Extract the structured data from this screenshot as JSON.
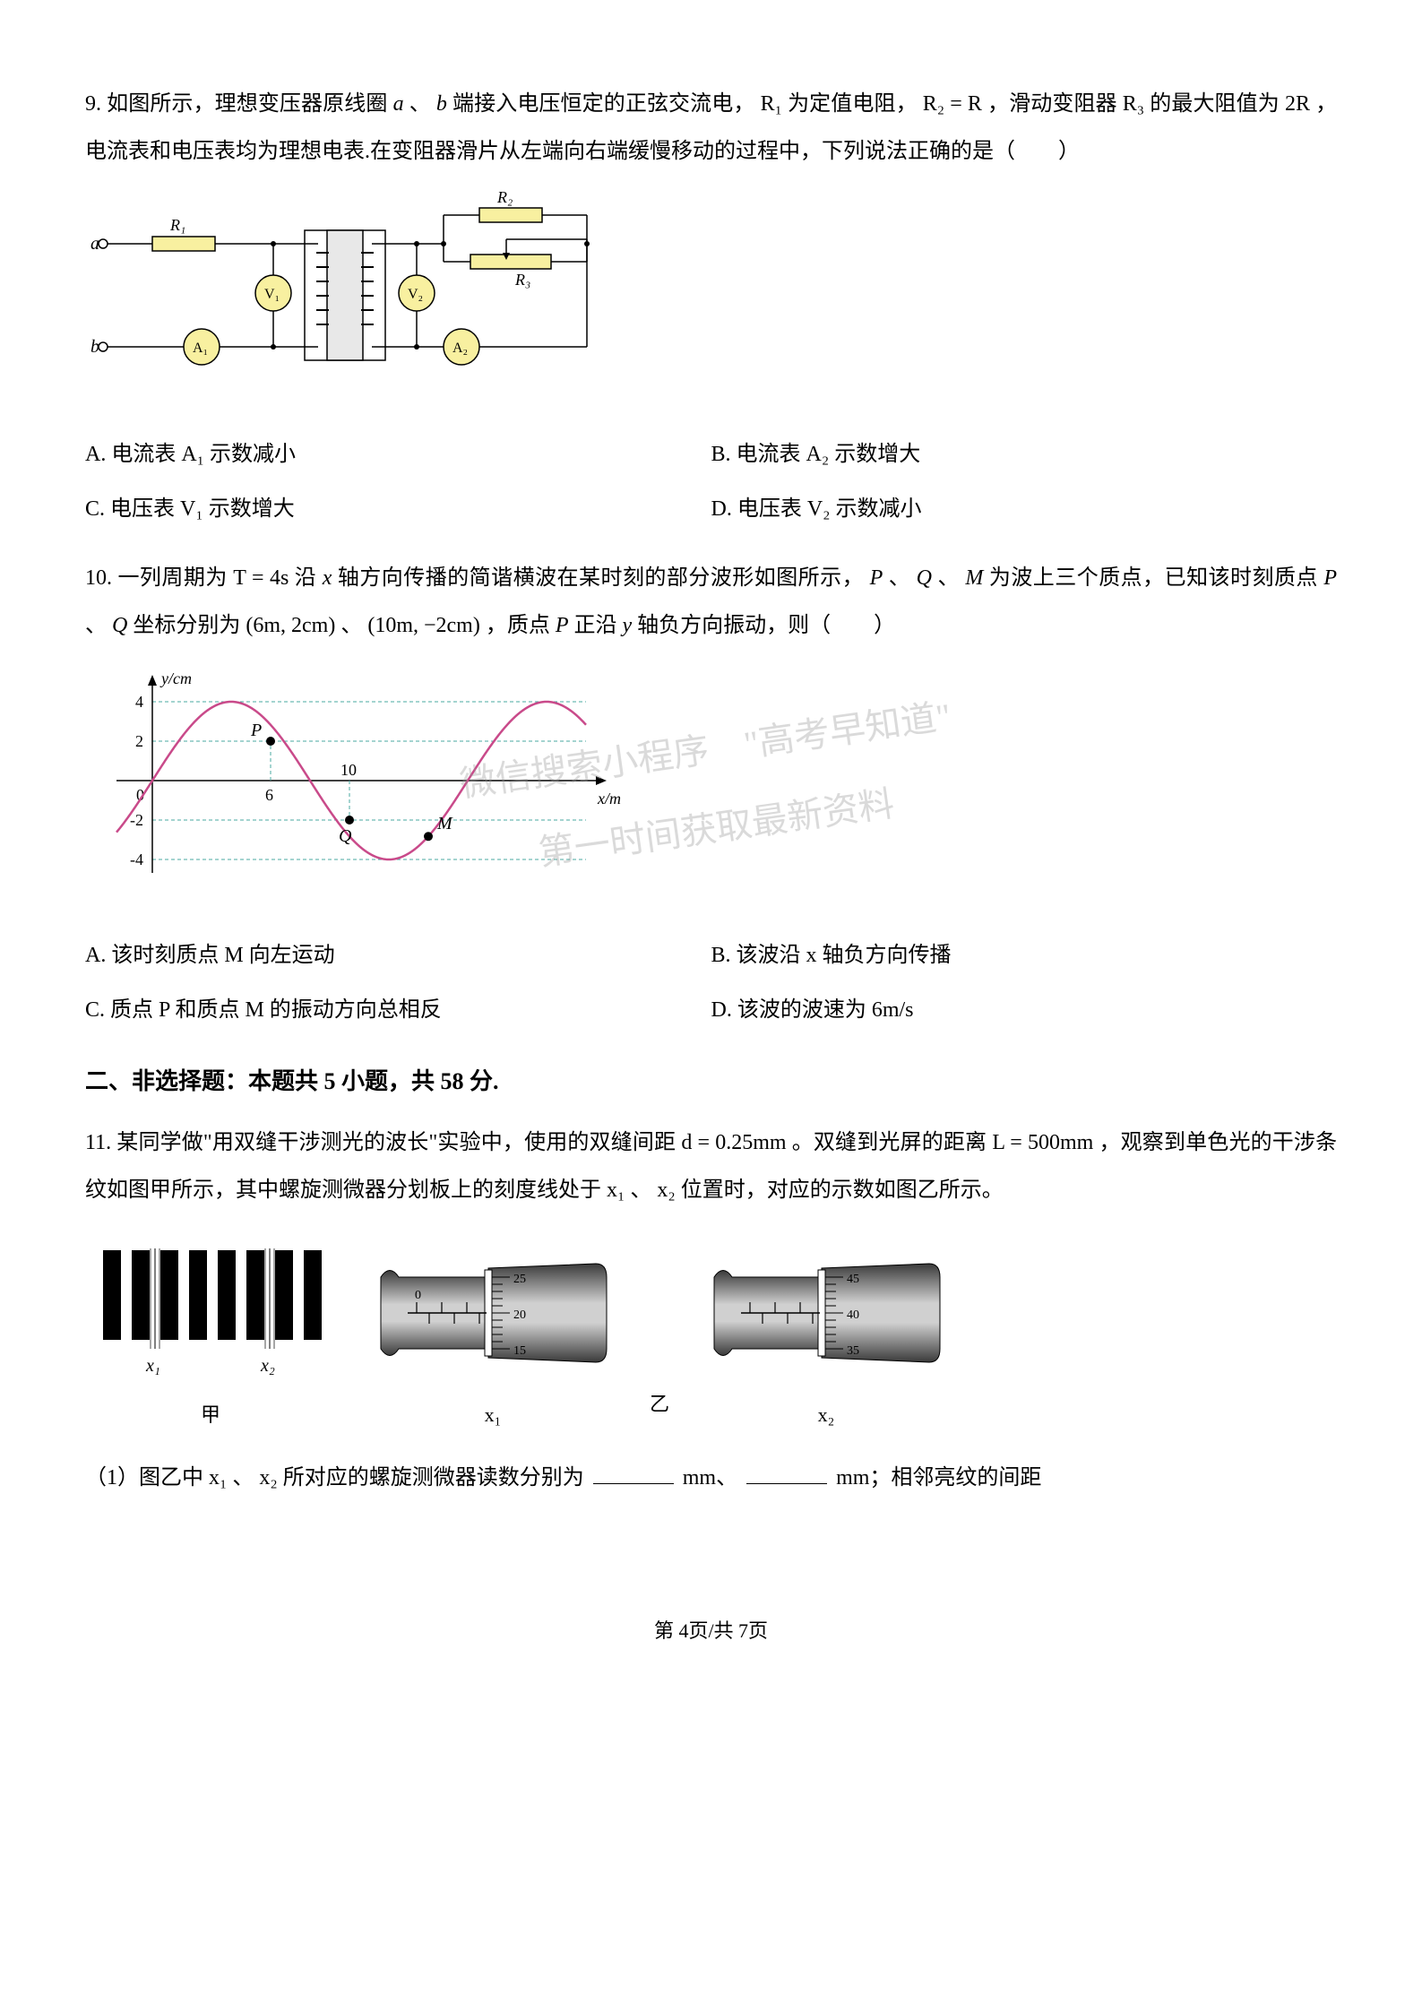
{
  "q9": {
    "number": "9.",
    "text1": "如图所示，理想变压器原线圈",
    "text2": "、",
    "text3": "端接入电压恒定的正弦交流电，",
    "text4": "为定值电阻，",
    "text5": "，滑动变阻器",
    "text6": "的最大阻值为",
    "text7": "，电流表和电压表均为理想电表.在变阻器滑片从左端向右端缓慢移动的过程中，下列说法正确的是（　　）",
    "sym_a": "a",
    "sym_b": "b",
    "R1": "R₁",
    "R2_eq": "R₂ = R",
    "R3": "R₃",
    "two_R": "2R",
    "optA": "A. 电流表 A₁ 示数减小",
    "optB": "B. 电流表 A₂ 示数增大",
    "optC": "C. 电压表 V₁ 示数增大",
    "optD": "D. 电压表 V₂ 示数减小",
    "circuit": {
      "terminal_a": "a",
      "terminal_b": "b",
      "R1_label": "R₁",
      "R2_label": "R₂",
      "R3_label": "R₃",
      "V1_label": "V₁",
      "V2_label": "V₂",
      "A1_label": "A₁",
      "A2_label": "A₂",
      "wire_color": "#000000",
      "resistor_fill": "#f8f0a0",
      "meter_fill": "#f8f0a0",
      "core_fill": "#e8e8e8"
    }
  },
  "q10": {
    "number": "10.",
    "text1": "一列周期为",
    "text2": "沿",
    "text3": "轴方向传播的简谐横波在某时刻的部分波形如图所示，",
    "text4": "、",
    "text5": "、",
    "text6": "为波上三个质点，已知该时刻质点",
    "text7": "、",
    "text8": "坐标分别为",
    "text9": "、",
    "text10": "，质点",
    "text11": "正沿",
    "text12": "轴负方向振动，则（　　）",
    "T_eq": "T = 4s",
    "x": "x",
    "P": "P",
    "Q": "Q",
    "M": "M",
    "coord1": "(6m, 2cm)",
    "coord2": "(10m, −2cm)",
    "y": "y",
    "optA": "A. 该时刻质点 M 向左运动",
    "optB": "B. 该波沿 x 轴负方向传播",
    "optC": "C. 质点 P 和质点 M 的振动方向总相反",
    "optD": "D. 该波的波速为 6m/s",
    "chart": {
      "type": "line",
      "xlabel": "x/m",
      "ylabel": "y/cm",
      "ylim": [
        -4,
        4
      ],
      "yticks": [
        -4,
        -2,
        0,
        2,
        4
      ],
      "xticks_visible": [
        0,
        6,
        10
      ],
      "curve_color": "#c94a8a",
      "grid_color": "#4aa8a0",
      "grid_dash": "4,3",
      "axis_color": "#000000",
      "point_fill": "#000000",
      "P_label": "P",
      "Q_label": "Q",
      "M_label": "M",
      "amplitude": 4,
      "wavelength": 16,
      "phase_offset": 4,
      "P_x": 6,
      "P_y": 2,
      "Q_x": 10,
      "Q_y": -2,
      "M_x": 14
    },
    "watermark_line1": "微信搜索小程序　\"高考早知道\"",
    "watermark_line2": "第一时间获取最新资料"
  },
  "section2": {
    "title": "二、非选择题：本题共 5 小题，共 58 分."
  },
  "q11": {
    "number": "11.",
    "text1": "某同学做\"用双缝干涉测光的波长\"实验中，使用的双缝间距",
    "text2": "。双缝到光屏的距离",
    "text3": "，观察到单色光的干涉条纹如图甲所示，其中螺旋测微器分划板上的刻度线处于",
    "text4": "、",
    "text5": "位置时，对应的示数如图乙所示。",
    "d_eq": "d = 0.25mm",
    "L_eq": "L = 500mm",
    "x1": "x₁",
    "x2": "x₂",
    "sub1_label": "（1）图乙中",
    "sub1_mid1": "、",
    "sub1_mid2": "所对应的螺旋测微器读数分别为",
    "sub1_unit1": "mm、",
    "sub1_unit2": "mm；相邻亮纹的间距",
    "fig_jia": {
      "caption": "甲",
      "x1_label": "x₁",
      "x2_label": "x₂",
      "bar_color": "#000000",
      "bg_color": "#ffffff",
      "num_bars": 8
    },
    "fig_yi": {
      "caption": "乙",
      "x1_label": "x₁",
      "x2_label": "x₂",
      "m1_main_visible": "0",
      "m1_thimble_approx": 20.0,
      "m1_thimble_labels": [
        "25",
        "20",
        "15"
      ],
      "m2_main_visible": "",
      "m2_thimble_approx": 39.5,
      "m2_thimble_labels": [
        "45",
        "40",
        "35"
      ],
      "body_dark": "#3a3a3a",
      "body_light": "#d0d0d0",
      "scale_color": "#000000"
    }
  },
  "footer": "第 4页/共 7页"
}
